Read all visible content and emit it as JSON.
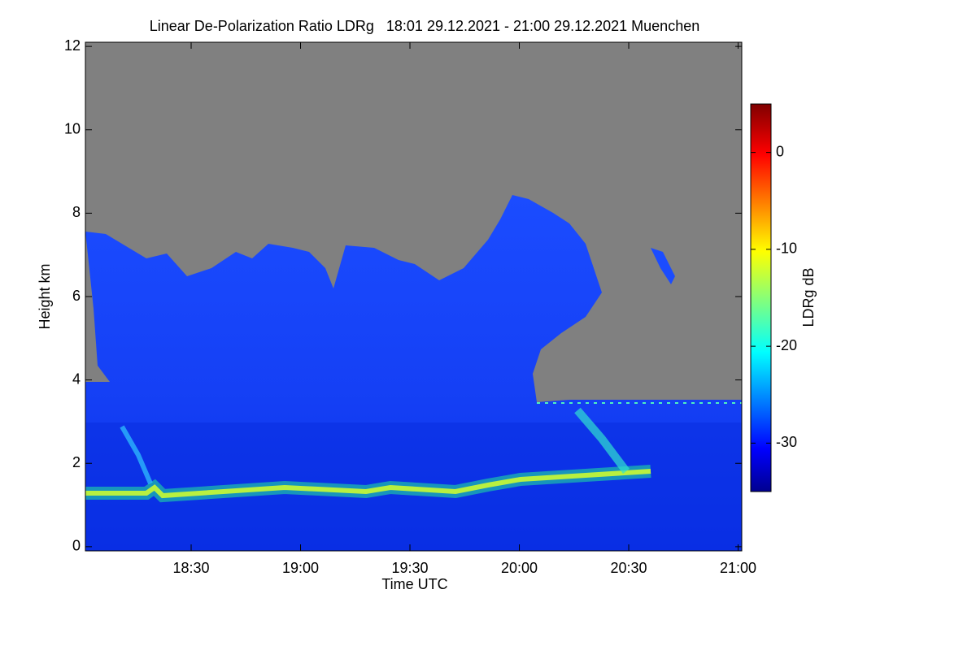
{
  "chart_data": {
    "type": "heatmap",
    "title": "Linear De-Polarization Ratio LDRg   18:01 29.12.2021 - 21:00 29.12.2021 Muenchen",
    "x_label": "Time UTC",
    "y_label": "Height km",
    "xlim": [
      1,
      181
    ],
    "xticks": [
      {
        "value": 30,
        "label": "18:30"
      },
      {
        "value": 60,
        "label": "19:00"
      },
      {
        "value": 90,
        "label": "19:30"
      },
      {
        "value": 120,
        "label": "20:00"
      },
      {
        "value": 150,
        "label": "20:30"
      },
      {
        "value": 180,
        "label": "21:00"
      }
    ],
    "ylim": [
      -0.1,
      12.1
    ],
    "yticks": [
      0,
      2,
      4,
      6,
      8,
      10,
      12
    ],
    "colorbar": {
      "label": "LDRg dB",
      "lim": [
        -35,
        5
      ],
      "ticks": [
        0,
        -10,
        -20,
        -30
      ],
      "colormap": "jet"
    },
    "no_data_color": "#808080"
  }
}
